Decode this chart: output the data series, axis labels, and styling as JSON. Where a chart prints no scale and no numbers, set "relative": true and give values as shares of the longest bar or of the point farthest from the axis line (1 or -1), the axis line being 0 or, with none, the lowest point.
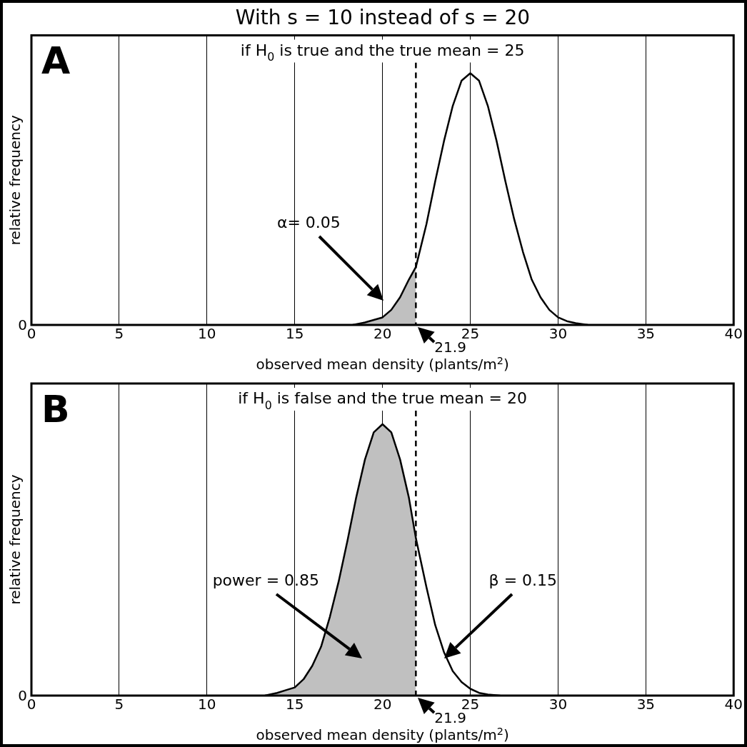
{
  "chart_data": [
    {
      "type": "line",
      "title": "With s = 10 instead of s = 20",
      "subtitle": "if H$_{0}$ is true and the true mean = 25",
      "xlabel": "observed mean density (plants/m$^{2}$)",
      "ylabel": "relative frequency",
      "relative": true,
      "xlim": [
        0,
        40
      ],
      "xticks": [
        0,
        5,
        10,
        15,
        20,
        25,
        30,
        35,
        40
      ],
      "grid": "x",
      "marker": "none",
      "legend": false,
      "series": [
        {
          "type": "area",
          "color": "#c0c0c0",
          "x": [
            18.3,
            19,
            19.5,
            20,
            20.5,
            21,
            21.5,
            21.9
          ],
          "values": [
            0,
            0.01,
            0.02,
            0.03,
            0.06,
            0.11,
            0.18,
            0.23
          ]
        },
        {
          "type": "line",
          "color": "#000000",
          "x": [
            18.3,
            19,
            19.5,
            20,
            20.5,
            21,
            21.5,
            21.9,
            22.5,
            23,
            23.5,
            24,
            24.5,
            25,
            25.5,
            26,
            26.5,
            27,
            27.5,
            28,
            28.5,
            29,
            29.5,
            30,
            30.5,
            31,
            31.7
          ],
          "values": [
            0,
            0.01,
            0.02,
            0.03,
            0.06,
            0.11,
            0.18,
            0.23,
            0.4,
            0.57,
            0.73,
            0.87,
            0.97,
            1,
            0.97,
            0.87,
            0.73,
            0.57,
            0.42,
            0.29,
            0.18,
            0.11,
            0.06,
            0.03,
            0.015,
            0.007,
            0
          ]
        }
      ],
      "ref_lines": [
        {
          "axis": "x",
          "value": 21.9,
          "line_style": "dashed",
          "color": "#000000"
        }
      ],
      "annotations": [
        "A",
        "α= 0.05",
        {
          "text": "21.9",
          "x": 21.9,
          "y": 0
        },
        "0"
      ]
    },
    {
      "type": "line",
      "subtitle": "if H$_{0}$ is false and the true mean = 20",
      "xlabel": "observed mean density (plants/m$^{2}$)",
      "ylabel": "relative frequency",
      "relative": true,
      "xlim": [
        0,
        40
      ],
      "xticks": [
        0,
        5,
        10,
        15,
        20,
        25,
        30,
        35,
        40
      ],
      "grid": "x",
      "marker": "none",
      "legend": false,
      "series": [
        {
          "type": "area",
          "color": "#c0c0c0",
          "x": [
            13.3,
            14,
            14.5,
            15,
            15.5,
            16,
            16.5,
            17,
            17.5,
            18,
            18.5,
            19,
            19.5,
            20,
            20.5,
            21,
            21.5,
            21.9
          ],
          "values": [
            0,
            0.01,
            0.02,
            0.03,
            0.06,
            0.11,
            0.18,
            0.29,
            0.42,
            0.57,
            0.73,
            0.87,
            0.97,
            1,
            0.97,
            0.87,
            0.73,
            0.58
          ]
        },
        {
          "type": "line",
          "color": "#000000",
          "x": [
            13.3,
            14,
            14.5,
            15,
            15.5,
            16,
            16.5,
            17,
            17.5,
            18,
            18.5,
            19,
            19.5,
            20,
            20.5,
            21,
            21.5,
            21.9,
            22.5,
            23,
            23.5,
            24,
            24.5,
            25,
            25.5,
            26,
            26.7
          ],
          "values": [
            0,
            0.01,
            0.02,
            0.03,
            0.06,
            0.11,
            0.18,
            0.29,
            0.42,
            0.57,
            0.73,
            0.87,
            0.97,
            1,
            0.97,
            0.87,
            0.73,
            0.58,
            0.4,
            0.26,
            0.16,
            0.09,
            0.05,
            0.025,
            0.01,
            0.004,
            0
          ]
        }
      ],
      "ref_lines": [
        {
          "axis": "x",
          "value": 21.9,
          "line_style": "dashed",
          "color": "#000000"
        }
      ],
      "annotations": [
        "B",
        "power = 0.85",
        "β = 0.15",
        {
          "text": "21.9",
          "x": 21.9,
          "y": 0
        },
        "0"
      ]
    }
  ]
}
